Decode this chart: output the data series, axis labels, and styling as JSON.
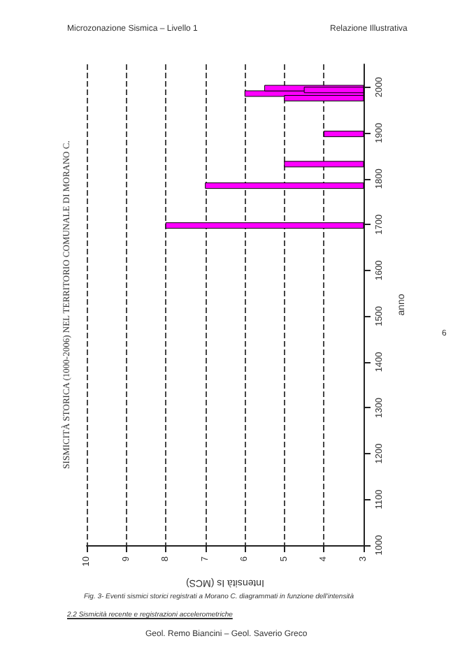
{
  "chart_data": {
    "type": "bar",
    "orientation": "horizontal",
    "title": "SISMICITÀ STORICA (1000-2006) NEL TERRITORIO COMUNALE DI MORANO C.",
    "xlabel": "Intensità Is (MCS)",
    "ylabel": "anno",
    "x": [
      1698,
      1785,
      1832,
      1898,
      1976,
      1986,
      1994,
      1998
    ],
    "values": [
      8,
      7,
      5,
      4,
      5,
      6,
      4.5,
      5.5
    ],
    "color": "#ff00ff",
    "xlim": [
      10,
      3
    ],
    "xticks": [
      10,
      9,
      8,
      7,
      6,
      5,
      4,
      3
    ],
    "ylim": [
      1000,
      2050
    ],
    "yticks": [
      1000,
      1100,
      1200,
      1300,
      1400,
      1500,
      1600,
      1700,
      1800,
      1900,
      2000
    ],
    "grid": "x",
    "annotations": [
      "Microzonazione Sismica – Livello 1",
      "Relazione Illustrativa",
      "6",
      "Fig. 3- Eventi sismici storici registrati a Morano C. diagrammati in funzione dell'intensità",
      "2.2 Sismicità recente e registrazioni accelerometriche",
      "Geol. Remo Biancini – Geol. Saverio Greco"
    ]
  }
}
